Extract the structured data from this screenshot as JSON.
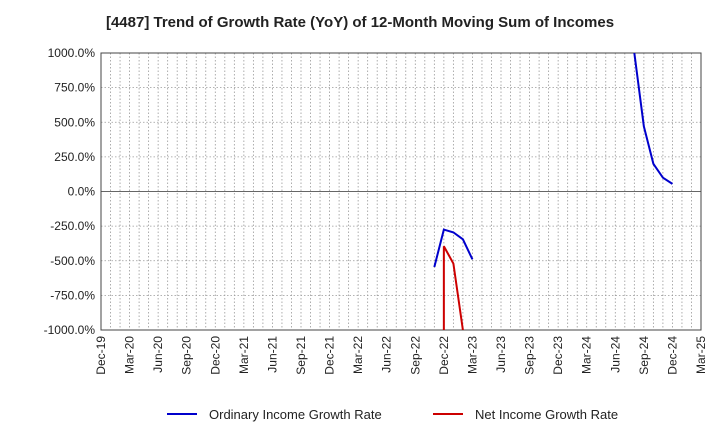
{
  "chart_data": {
    "type": "line",
    "title": "[4487]  Trend of Growth Rate (YoY) of 12-Month Moving Sum of Incomes",
    "ylim": [
      -1000,
      1000
    ],
    "yticks": [
      1000,
      750,
      500,
      250,
      0,
      -250,
      -500,
      -750,
      -1000
    ],
    "ytick_labels": [
      "1000.0%",
      "750.0%",
      "500.0%",
      "250.0%",
      "0.0%",
      "-250.0%",
      "-500.0%",
      "-750.0%",
      "-1000.0%"
    ],
    "x_start": "2019-12",
    "x_end": "2025-03",
    "xtick_labels": [
      "Dec-19",
      "Mar-20",
      "Jun-20",
      "Sep-20",
      "Dec-20",
      "Mar-21",
      "Jun-21",
      "Sep-21",
      "Dec-21",
      "Mar-22",
      "Jun-22",
      "Sep-22",
      "Dec-22",
      "Mar-23",
      "Jun-23",
      "Sep-23",
      "Dec-23",
      "Mar-24",
      "Jun-24",
      "Sep-24",
      "Dec-24",
      "Mar-25"
    ],
    "grid": true,
    "legend_position": "bottom",
    "series": [
      {
        "name": "Ordinary Income Growth Rate",
        "color": "#0000cc",
        "points": [
          [
            "2022-11",
            -545
          ],
          [
            "2022-12",
            -275
          ],
          [
            "2023-01",
            -295
          ],
          [
            "2023-02",
            -345
          ],
          [
            "2023-03",
            -490
          ],
          [
            "2024-08",
            1000
          ],
          [
            "2024-09",
            470
          ],
          [
            "2024-10",
            200
          ],
          [
            "2024-11",
            100
          ],
          [
            "2024-12",
            55
          ]
        ]
      },
      {
        "name": "Net Income Growth Rate",
        "color": "#cc0000",
        "points": [
          [
            "2022-12",
            -1000
          ],
          [
            "2022-12",
            -395
          ],
          [
            "2023-01",
            -520
          ],
          [
            "2023-02",
            -1000
          ]
        ]
      }
    ]
  }
}
